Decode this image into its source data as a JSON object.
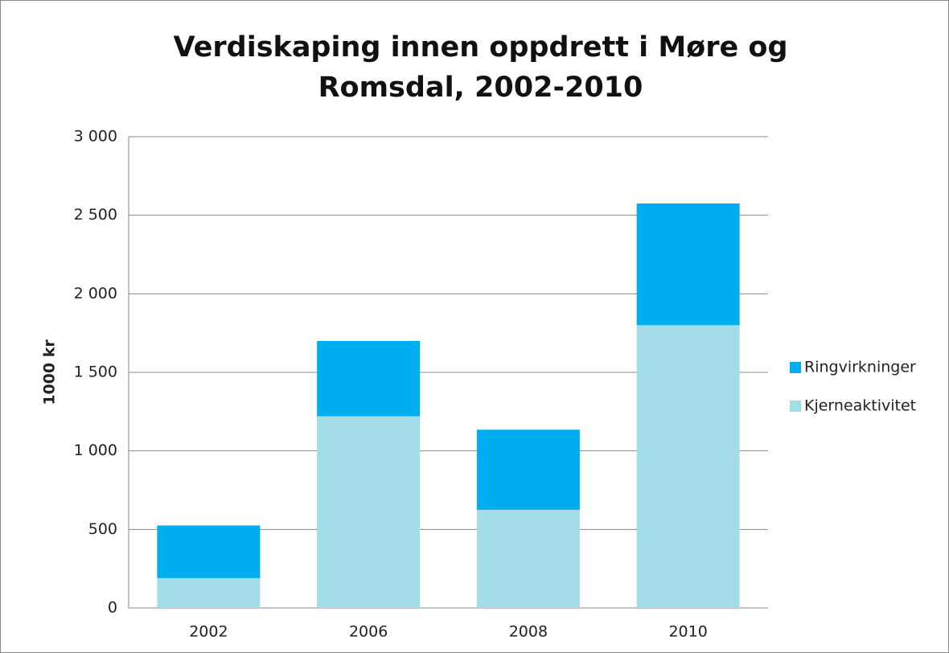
{
  "chart_data": {
    "type": "stacked_bar",
    "title": "Verdiskaping innen oppdrett i Møre og Romsdal, 2002-2010",
    "y_label": "1000 kr",
    "categories": [
      "2002",
      "2006",
      "2008",
      "2010"
    ],
    "series": [
      {
        "name": "Kjerneaktivitet",
        "color": "#a3dde8",
        "values": [
          190,
          1220,
          625,
          1800
        ]
      },
      {
        "name": "Ringvirkninger",
        "color": "#00aeef",
        "values": [
          335,
          480,
          510,
          775
        ]
      }
    ],
    "ylim": [
      0,
      3000
    ],
    "yticks": [
      0,
      500,
      {
        "value": 1000,
        "label": "1 000"
      },
      {
        "value": 1500,
        "label": "1 500"
      },
      {
        "value": 2000,
        "label": "2 000"
      },
      {
        "value": 2500,
        "label": "2 500"
      },
      {
        "value": 3000,
        "label": "3 000"
      }
    ],
    "grid": true,
    "legend": "right"
  }
}
